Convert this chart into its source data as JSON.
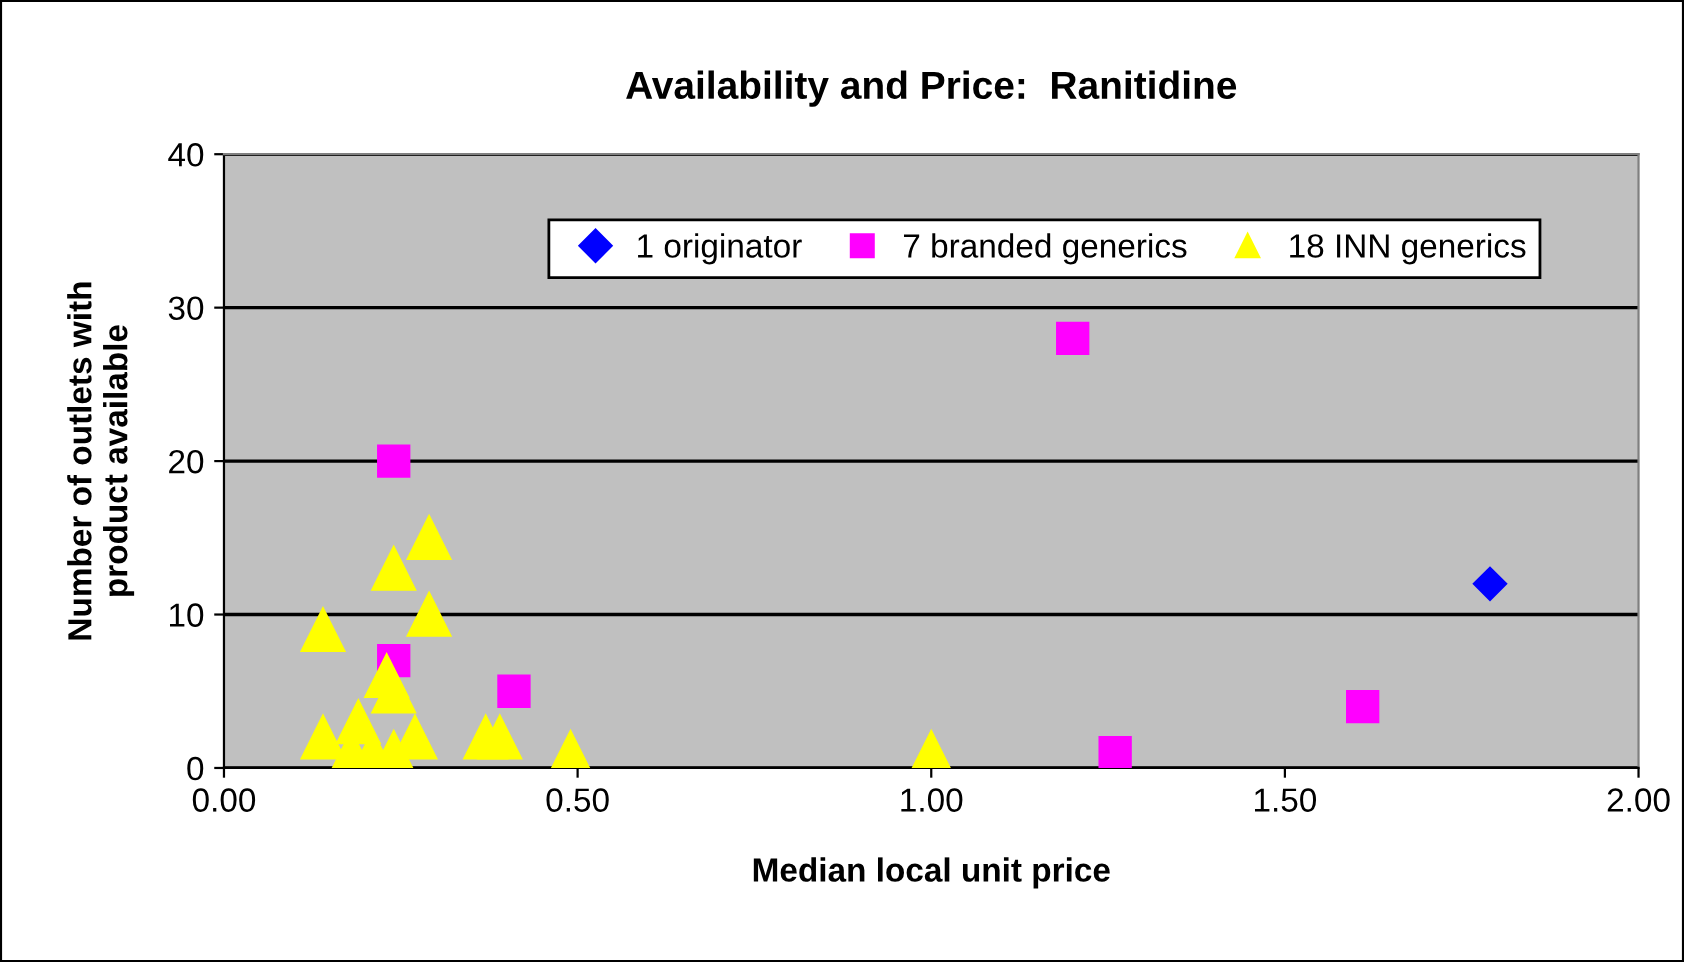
{
  "chart_data": {
    "type": "scatter",
    "title": "Availability and Price:  Ranitidine",
    "xlabel": "Median local unit price",
    "ylabel": "Number of outlets with\nproduct available",
    "xlim": [
      0,
      2
    ],
    "xticks": [
      {
        "value": 0,
        "label": "0.00"
      },
      {
        "value": 0.5,
        "label": "0.50"
      },
      {
        "value": 1,
        "label": "1.00"
      },
      {
        "value": 1.5,
        "label": "1.50"
      },
      {
        "value": 2,
        "label": "2.00"
      }
    ],
    "ylim": [
      0,
      40
    ],
    "yticks": [
      0,
      10,
      20,
      30,
      40
    ],
    "grid": "y",
    "legend": "top",
    "series": [
      {
        "name": "1 originator",
        "color": "#0000ff",
        "marker": "diamond",
        "x": [
          1.79
        ],
        "values": [
          12
        ]
      },
      {
        "name": "7 branded generics",
        "color": "#ff00ff",
        "marker": "square",
        "x": [
          1.2,
          0.24,
          0.24,
          0.41,
          1.26,
          1.61
        ],
        "values": [
          28,
          20,
          7,
          5,
          1,
          4
        ]
      },
      {
        "name": "18 INN generics",
        "color": "#ffff00",
        "marker": "triangle",
        "x": [
          0.29,
          0.24,
          0.29,
          0.14,
          0.23,
          0.24,
          0.14,
          0.19,
          0.27,
          0.37,
          0.39,
          0.49,
          0.18,
          0.21,
          0.24,
          1.0
        ],
        "values": [
          15,
          13,
          10,
          9,
          6,
          5,
          2,
          3,
          2,
          2,
          2,
          1,
          1,
          1,
          1,
          1
        ]
      }
    ]
  }
}
